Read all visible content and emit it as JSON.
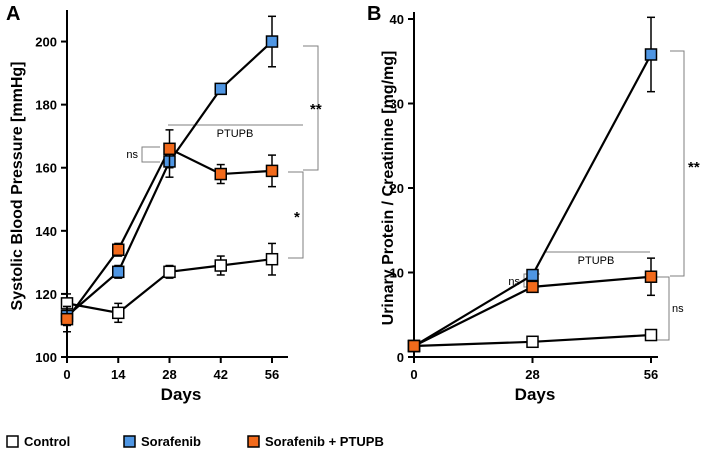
{
  "colors": {
    "control": "#ffffff",
    "sorafenib": "#4f96e3",
    "combo": "#f26a1b",
    "line": "#000000",
    "bracket": "#7f7f7f"
  },
  "legend": [
    {
      "key": "control",
      "label": "Control"
    },
    {
      "key": "sorafenib",
      "label": "Sorafenib"
    },
    {
      "key": "combo",
      "label": "Sorafenib + PTUPB"
    }
  ],
  "chart_data": [
    {
      "panel": "A",
      "type": "line",
      "ylabel": "Systolic Blood Pressure [mmHg]",
      "xlabel": "Days",
      "xlim": [
        0,
        56
      ],
      "xticks": [
        0,
        14,
        28,
        42,
        56
      ],
      "ylim": [
        100,
        210
      ],
      "yticks": [
        100,
        120,
        140,
        160,
        180,
        200
      ],
      "series": [
        {
          "key": "control",
          "name": "Control",
          "x": [
            0,
            14,
            28,
            42,
            56
          ],
          "y": [
            117,
            114,
            127,
            129,
            131
          ],
          "err": [
            3,
            3,
            2,
            3,
            5
          ]
        },
        {
          "key": "sorafenib",
          "name": "Sorafenib",
          "x": [
            0,
            14,
            28,
            42,
            56
          ],
          "y": [
            113,
            127,
            162,
            185,
            200
          ],
          "err": [
            3,
            2,
            5,
            1,
            8
          ]
        },
        {
          "key": "combo",
          "name": "Sorafenib + PTUPB",
          "x": [
            0,
            14,
            28,
            42,
            56
          ],
          "y": [
            112,
            134,
            166,
            158,
            159
          ],
          "err": [
            4,
            2,
            6,
            3,
            5
          ]
        }
      ],
      "annotations": {
        "ptupb": "PTUPB",
        "ns": "ns",
        "sig_top": "**",
        "sig_bottom": "*"
      }
    },
    {
      "panel": "B",
      "type": "line",
      "ylabel": "Urinary Protein / Creatinine [mg/mg]",
      "xlabel": "Days",
      "xlim": [
        0,
        56
      ],
      "xticks": [
        0,
        28,
        56
      ],
      "ylim": [
        0,
        40
      ],
      "yticks": [
        0,
        10,
        20,
        30,
        40
      ],
      "series": [
        {
          "key": "control",
          "name": "Control",
          "x": [
            0,
            28,
            56
          ],
          "y": [
            1.3,
            1.8,
            2.6
          ],
          "err": [
            0,
            0,
            0
          ]
        },
        {
          "key": "sorafenib",
          "name": "Sorafenib",
          "x": [
            0,
            28,
            56
          ],
          "y": [
            1.3,
            9.7,
            35.8
          ],
          "err": [
            0,
            0,
            4.4
          ]
        },
        {
          "key": "combo",
          "name": "Sorafenib + PTUPB",
          "x": [
            0,
            28,
            56
          ],
          "y": [
            1.3,
            8.3,
            9.5
          ],
          "err": [
            0,
            0,
            2.2
          ]
        }
      ],
      "annotations": {
        "ptupb": "PTUPB",
        "ns_left": "ns",
        "ns_right": "ns",
        "sig": "**"
      }
    }
  ]
}
